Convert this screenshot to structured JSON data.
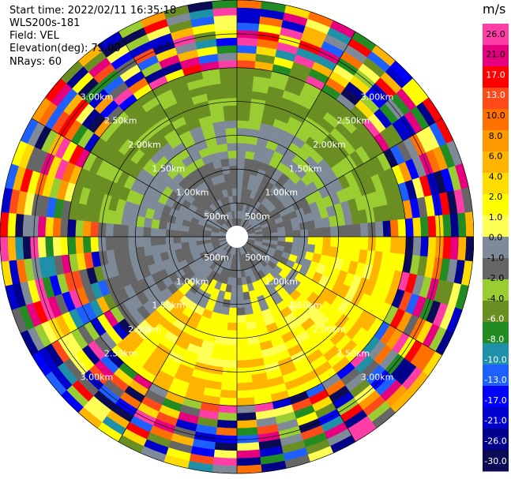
{
  "header": {
    "start_time": "Start time: 2022/02/11 16:35:18",
    "instrument": "WLS200s-181",
    "field": "Field: VEL",
    "elevation": "Elevation(deg): 75.00",
    "nrays": "NRays: 60"
  },
  "chart_data": {
    "type": "heatmap",
    "projection": "polar-ppi",
    "field": "VEL",
    "units": "m/s",
    "n_rays": 60,
    "range_max_km": 3.5,
    "range_rings_labels": [
      "500m",
      "1.00km",
      "1.50km",
      "2.00km",
      "2.50km",
      "3.00km"
    ],
    "colorbar": {
      "ticks": [
        "26.0",
        "21.0",
        "17.0",
        "13.0",
        "10.0",
        "8.0",
        "6.0",
        "4.0",
        "2.0",
        "1.0",
        "0.0",
        "-1.0",
        "-2.0",
        "-4.0",
        "-6.0",
        "-8.0",
        "-10.0",
        "-13.0",
        "-17.0",
        "-21.0",
        "-26.0",
        "-30.0"
      ],
      "colors": [
        "#ff3da6",
        "#e6007f",
        "#ff0000",
        "#ff4a1a",
        "#ff7000",
        "#ff9900",
        "#ffb400",
        "#ffdd00",
        "#ffff00",
        "#ffff55",
        "#7f8a99",
        "#666666",
        "#9acd32",
        "#6b8e23",
        "#228b22",
        "#1e90a8",
        "#1e5fff",
        "#0000ff",
        "#0000cc",
        "#00008b",
        "#0a0a55"
      ]
    }
  }
}
